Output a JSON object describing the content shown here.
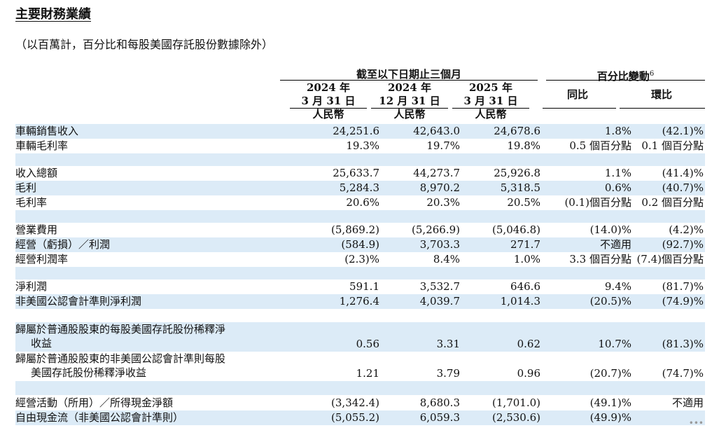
{
  "title": "主要財務業績",
  "subtitle": "（以百萬計，百分比和每股美國存託股份數據除外）",
  "headers": {
    "group_period": "截至以下日期止三個月",
    "group_change": "百分比變動",
    "group_change_note": "6",
    "col1": {
      "year": "2024 年",
      "date": "3 月 31 日",
      "currency": "人民幣"
    },
    "col2": {
      "year": "2024 年",
      "date": "12 月 31 日",
      "currency": "人民幣"
    },
    "col3": {
      "year": "2025 年",
      "date": "3 月 31 日",
      "currency": "人民幣"
    },
    "yoy": "同比",
    "qoq": "環比"
  },
  "rows": [
    {
      "label": "車輛銷售收入",
      "v1": "24,251.6",
      "v2": "42,643.0",
      "v3": "24,678.6",
      "yoy": "1.8%",
      "qoq": "(42.1)%"
    },
    {
      "label": "車輛毛利率",
      "v1": "19.3%",
      "v2": "19.7%",
      "v3": "19.8%",
      "yoy": "0.5 個百分點",
      "qoq": "0.1 個百分點"
    },
    {
      "label": "收入總額",
      "v1": "25,633.7",
      "v2": "44,273.7",
      "v3": "25,926.8",
      "yoy": "1.1%",
      "qoq": "(41.4)%"
    },
    {
      "label": "毛利",
      "v1": "5,284.3",
      "v2": "8,970.2",
      "v3": "5,318.5",
      "yoy": "0.6%",
      "qoq": "(40.7)%"
    },
    {
      "label": "毛利率",
      "v1": "20.6%",
      "v2": "20.3%",
      "v3": "20.5%",
      "yoy": "(0.1)個百分點",
      "qoq": "0.2 個百分點"
    },
    {
      "label": "營業費用",
      "v1": "(5,869.2)",
      "v2": "(5,266.9)",
      "v3": "(5,046.8)",
      "yoy": "(14.0)%",
      "qoq": "(4.2)%"
    },
    {
      "label": "經營（虧損）／利潤",
      "v1": "(584.9)",
      "v2": "3,703.3",
      "v3": "271.7",
      "yoy": "不適用",
      "qoq": "(92.7)%"
    },
    {
      "label": "經營利潤率",
      "v1": "(2.3)%",
      "v2": "8.4%",
      "v3": "1.0%",
      "yoy": "3.3 個百分點",
      "qoq": "(7.4)個百分點"
    },
    {
      "label": "淨利潤",
      "v1": "591.1",
      "v2": "3,532.7",
      "v3": "646.6",
      "yoy": "9.4%",
      "qoq": "(81.7)%"
    },
    {
      "label": "非美國公認會計準則淨利潤",
      "v1": "1,276.4",
      "v2": "4,039.7",
      "v3": "1,014.3",
      "yoy": "(20.5)%",
      "qoq": "(74.9)%"
    },
    {
      "label_line1": "歸屬於普通股股東的每股美國存託股份稀釋淨",
      "label_line2": "收益",
      "v1": "0.56",
      "v2": "3.31",
      "v3": "0.62",
      "yoy": "10.7%",
      "qoq": "(81.3)%"
    },
    {
      "label_line1": "歸屬於普通股股東的非美國公認會計準則每股",
      "label_line2": "美國存託股份稀釋淨收益",
      "v1": "1.21",
      "v2": "3.79",
      "v3": "0.96",
      "yoy": "(20.7)%",
      "qoq": "(74.7)%"
    },
    {
      "label": "經營活動（所用）／所得現金淨額",
      "v1": "(3,342.4)",
      "v2": "8,680.3",
      "v3": "(1,701.0)",
      "yoy": "(49.1)%",
      "qoq": "不適用"
    },
    {
      "label": "自由現金流（非美國公認會計準則）",
      "v1": "(5,055.2)",
      "v2": "6,059.3",
      "v3": "(2,530.6)",
      "yoy": "(49.9)%",
      "qoq": ""
    }
  ],
  "watermark": "•••"
}
